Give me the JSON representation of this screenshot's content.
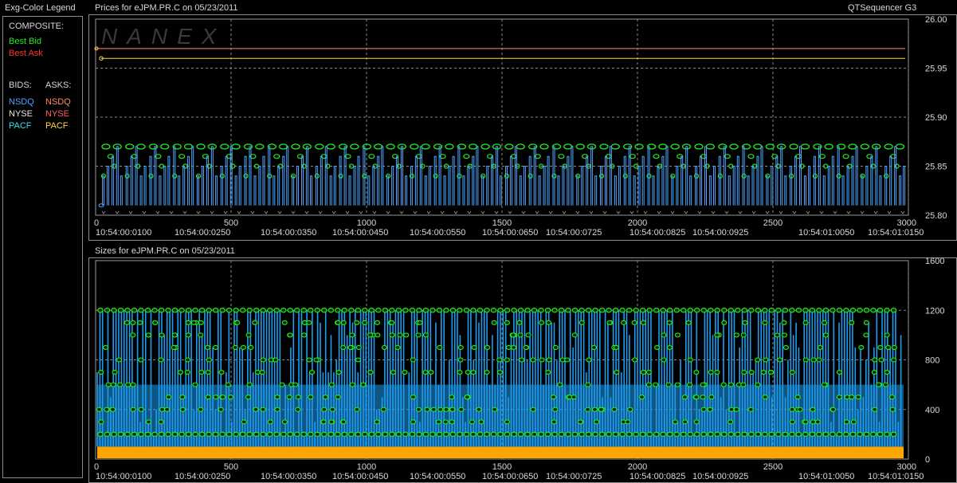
{
  "app": {
    "title": "QTSequencer G3",
    "watermark": "NANEX"
  },
  "legend": {
    "title": "Exg-Color Legend",
    "composite_label": "COMPOSITE:",
    "composite": [
      {
        "label": "Best Bid",
        "color": "#22ee22"
      },
      {
        "label": "Best Ask",
        "color": "#ff3030"
      }
    ],
    "bids_label": "BIDS:",
    "asks_label": "ASKS:",
    "bids": [
      {
        "label": "NSDQ",
        "color": "#4da6ff"
      },
      {
        "label": "NYSE",
        "color": "#e6e6e6"
      },
      {
        "label": "PACF",
        "color": "#40e0e0"
      }
    ],
    "asks": [
      {
        "label": "NSDQ",
        "color": "#ff8c5a"
      },
      {
        "label": "NYSE",
        "color": "#ff6060"
      },
      {
        "label": "PACF",
        "color": "#ffd54a"
      }
    ]
  },
  "chart_data": [
    {
      "type": "line",
      "title": "Prices for  eJPM.PR.C  on  05/23/2011",
      "symbol": "eJPM.PR.C",
      "date": "05/23/2011",
      "xlim": [
        0,
        3000
      ],
      "ylim": [
        25.8,
        26.0
      ],
      "x_ticks": [
        0,
        500,
        1000,
        1500,
        2000,
        2500,
        3000
      ],
      "y_ticks": [
        "25.80",
        "25.85",
        "25.90",
        "25.95",
        "26.00"
      ],
      "time_labels": [
        "10:54:00:0100",
        "10:54:00:0250",
        "10:54:00:0350",
        "10:54:00:0450",
        "10:54:00:0550",
        "10:54:00:0650",
        "10:54:00:0725",
        "10:54:00:0825",
        "10:54:00:0925",
        "10:54:01:0050",
        "10:54:01:0150"
      ],
      "grid": true,
      "series": [
        {
          "name": "NSDQ",
          "color": "#ff8c5a",
          "y": 25.97
        },
        {
          "name": "PACF",
          "color": "#ffd54a",
          "y": 25.96
        },
        {
          "name": "Best Bid",
          "color": "#22ee22",
          "levels": [
            25.84,
            25.85,
            25.86,
            25.87
          ],
          "cycles": 34
        },
        {
          "name": "NSDQ",
          "color": "#4da6ff",
          "range": [
            25.81,
            25.87
          ]
        }
      ]
    },
    {
      "type": "bar",
      "title": "Sizes for  eJPM.PR.C  on  05/23/2011",
      "symbol": "eJPM.PR.C",
      "date": "05/23/2011",
      "xlim": [
        0,
        3000
      ],
      "ylim": [
        0,
        1600
      ],
      "x_ticks": [
        0,
        500,
        1000,
        1500,
        2000,
        2500,
        3000
      ],
      "y_ticks": [
        "0",
        "400",
        "800",
        "1200",
        "1600"
      ],
      "time_labels": [
        "10:54:00:0100",
        "10:54:00:0250",
        "10:54:00:0350",
        "10:54:00:0450",
        "10:54:00:0550",
        "10:54:00:0650",
        "10:54:00:0725",
        "10:54:00:0825",
        "10:54:00:0925",
        "10:54:01:0050",
        "10:54:01:0150"
      ],
      "grid": true,
      "series": [
        {
          "name": "PACF",
          "color": "#ffa500",
          "value": 100
        },
        {
          "name": "NSDQ",
          "color": "#1e9cf0",
          "range": [
            100,
            1200
          ]
        },
        {
          "name": "Best Bid",
          "color": "#22ee22",
          "levels": [
            200,
            300,
            400,
            500,
            600,
            700,
            800,
            900,
            1000,
            1100,
            1200
          ]
        }
      ]
    }
  ]
}
